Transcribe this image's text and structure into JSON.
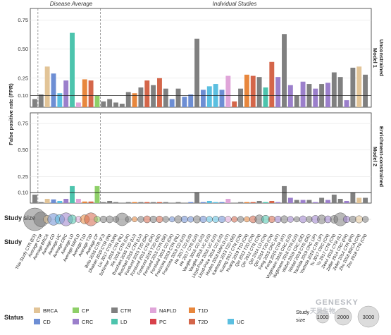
{
  "headers": {
    "average": "Disease Average",
    "individual": "Individual Studies"
  },
  "y_axis_label": "False positive rate (FPR)",
  "row_labels": {
    "size": "Study size",
    "study": "Study",
    "status": "Status"
  },
  "panels": [
    {
      "label_main": "Unconstrained",
      "label_sub": "Model 1"
    },
    {
      "label_main": "Enrichment-constrained",
      "label_sub": "Model 2"
    }
  ],
  "size_legend": {
    "title_line1": "Study",
    "title_line2": "size",
    "values": [
      "1000",
      "2000",
      "3000"
    ]
  },
  "status_colors": {
    "BRCA": "#e2c497",
    "CP": "#8ecf68",
    "CTR": "#808080",
    "NAFLD": "#e0a5d9",
    "T1D": "#e8873d",
    "CD": "#6d8ed4",
    "CRC": "#9b7fcb",
    "LD": "#4dc4ad",
    "PC": "#d8404a",
    "T2D": "#d4664a",
    "UC": "#5bbfe0"
  },
  "legend_order": [
    [
      "BRCA",
      "CP",
      "CTR",
      "NAFLD",
      "T1D"
    ],
    [
      "CD",
      "CRC",
      "LD",
      "PC",
      "T2D",
      "UC"
    ]
  ],
  "watermark": {
    "brand": "GENESKY",
    "sub": "天昊生物"
  },
  "chart_data": {
    "type": "bar",
    "title": "",
    "ylabel": "False positive rate (FPR)",
    "ylim": [
      0,
      0.85
    ],
    "yticks": [
      0.1,
      0.25,
      0.5,
      0.75
    ],
    "reference_line": 0.1,
    "categories": [
      "This Study CTR (ES)",
      "Average CTR",
      "Average BRCA",
      "Average CD",
      "Average UC",
      "Average CRC",
      "Average LD",
      "Average NAFLD",
      "Average T1D",
      "Average T2D",
      "Average CP",
      "Brito 2016 CTR (FJ)",
      "Dhakan 2019 CTR (IN)",
      "Liu 2017 CTR (MN)",
      "Schirmer 2016 CTR (NL)",
      "Xie 2016 CTR (UK)",
      "Buschart 2016 T1D (LU)",
      "Buschart 2016 CTR (LU)",
      "Forslund 2015 T2D (DK)",
      "Forslund 2015 CTR (DK)",
      "Forslund 2015 T2D (SE)",
      "Forslund 2015 CTR (SE)",
      "Forslund 2015 CD (DK)",
      "Franzosa 2019 CTR (NL)",
      "Franzosa 2019 CD (US)",
      "He 2017 CD (US)",
      "He 2017 CTR (US)",
      "Vaughn 2016 CD (US)",
      "Vaughn 2016 UC (US)",
      "Lloyd-Price 2016 UC (US)",
      "Lloyd-Price 2016 CD (US)",
      "Hoyles 2018 NAFLD (IT)",
      "Karlsson 2013 T2D (SE)",
      "Kuang 2017 CTR (CN)",
      "Kuang 2019 T1D (CN)",
      "Qin 2012 T2D (CN)",
      "Qin 2012 CTR (CN)",
      "Qin 2014 LD (CN)",
      "Qin 2014 T2D (CN)",
      "Feng 2015 CRC (AT)",
      "Feng 2015 CTR (AT)",
      "Vogtmann 2016 CRC (US)",
      "Vogtmann 2016 CTR (US)",
      "Wirbel 2019 CRC (DE)",
      "Wirbel 2019 CTR (DE)",
      "Yachida 2019 CRC (JP)",
      "Yachida 2019 CTR (JP)",
      "Yu 2017 CRC (CN)",
      "Yu 2017 CTR (CN)",
      "Zeevi 2015 CTR (IL)",
      "Zeller 2014 CRC (FR)",
      "Zeller 2014 CTR (FR)",
      "Zhu 2018 BRCA (CN)",
      "Zhu 2018 CTR (CN)"
    ],
    "status": [
      "CTR",
      "CTR",
      "BRCA",
      "CD",
      "UC",
      "CRC",
      "LD",
      "NAFLD",
      "T1D",
      "T2D",
      "CP",
      "CTR",
      "CTR",
      "CTR",
      "CTR",
      "CTR",
      "T1D",
      "CTR",
      "T2D",
      "CTR",
      "T2D",
      "CTR",
      "CD",
      "CTR",
      "CD",
      "CD",
      "CTR",
      "CD",
      "UC",
      "UC",
      "CD",
      "NAFLD",
      "T2D",
      "CTR",
      "T1D",
      "T2D",
      "CTR",
      "LD",
      "T2D",
      "CRC",
      "CTR",
      "CRC",
      "CTR",
      "CRC",
      "CTR",
      "CRC",
      "CTR",
      "CRC",
      "CTR",
      "CTR",
      "CRC",
      "CTR",
      "BRCA",
      "CTR"
    ],
    "series": [
      {
        "panel": "Model 1",
        "values": [
          0.07,
          0.11,
          0.35,
          0.29,
          0.12,
          0.23,
          0.64,
          0.04,
          0.24,
          0.23,
          0.1,
          0.05,
          0.07,
          0.04,
          0.03,
          0.13,
          0.12,
          0.17,
          0.23,
          0.19,
          0.25,
          0.16,
          0.07,
          0.16,
          0.09,
          0.11,
          0.59,
          0.15,
          0.18,
          0.2,
          0.15,
          0.27,
          0.05,
          0.16,
          0.28,
          0.27,
          0.26,
          0.17,
          0.39,
          0.26,
          0.63,
          0.19,
          0.1,
          0.22,
          0.2,
          0.16,
          0.2,
          0.21,
          0.3,
          0.26,
          0.06,
          0.34,
          0.35,
          0.28
        ]
      },
      {
        "panel": "Model 2",
        "values": [
          0.08,
          0.01,
          0.04,
          0.035,
          0.02,
          0.04,
          0.16,
          0.04,
          0.015,
          0.015,
          0.16,
          0.01,
          0.02,
          0.01,
          0.0,
          0.01,
          0.01,
          0.01,
          0.01,
          0.01,
          0.01,
          0.01,
          0.0,
          0.01,
          0.0,
          0.01,
          0.1,
          0.01,
          0.02,
          0.01,
          0.01,
          0.04,
          0.0,
          0.01,
          0.01,
          0.01,
          0.02,
          0.01,
          0.02,
          0.01,
          0.16,
          0.05,
          0.03,
          0.03,
          0.03,
          0.01,
          0.05,
          0.03,
          0.08,
          0.04,
          0.02,
          0.1,
          0.05,
          0.05
        ]
      }
    ],
    "study_sizes": [
      3300,
      1400,
      400,
      900,
      600,
      1100,
      500,
      250,
      550,
      1100,
      250,
      300,
      330,
      250,
      1050,
      230,
      180,
      250,
      330,
      300,
      300,
      250,
      200,
      350,
      300,
      230,
      350,
      300,
      250,
      280,
      300,
      250,
      230,
      250,
      200,
      330,
      520,
      430,
      300,
      300,
      350,
      250,
      200,
      330,
      250,
      400,
      500,
      330,
      400,
      1100,
      300,
      300,
      350,
      250
    ],
    "x_axis_label": "Study",
    "legend": "bottom"
  }
}
